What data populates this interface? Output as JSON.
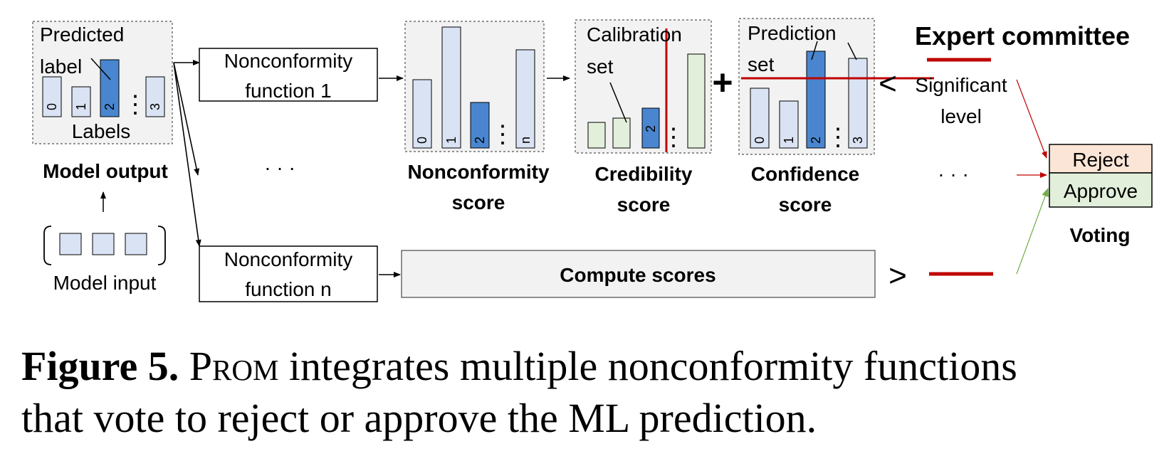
{
  "colors": {
    "panel_bg": "#f2f2f2",
    "bar_light": "#dae3f3",
    "bar_highlight": "#4a86cf",
    "bar_green": "#e2efda",
    "red_line": "#c00000",
    "reject_fill": "#fbe5d6",
    "approve_fill": "#e2efda",
    "green_arrow": "#70ad47"
  },
  "model_output": {
    "predicted": "Predicted",
    "label": "label",
    "bar_labels": [
      "0",
      "1",
      "2",
      "3"
    ],
    "dots": "⋮",
    "axis_label": "Labels",
    "title": "Model output"
  },
  "model_input": {
    "title": "Model input"
  },
  "functions": {
    "f1_line1": "Nonconformity",
    "f1_line2": "function 1",
    "fn_line1": "Nonconformity",
    "fn_line2": "function n",
    "ellipsis": "· · ·"
  },
  "nonconformity_score": {
    "bar_labels": [
      "0",
      "1",
      "2",
      "n"
    ],
    "title_line1": "Nonconformity",
    "title_line2": "score"
  },
  "credibility": {
    "set_line1": "Calibration",
    "set_line2": "set",
    "highlight_label": "2",
    "title_line1": "Credibility",
    "title_line2": "score"
  },
  "plus_sign": "+",
  "confidence": {
    "set_line1": "Prediction",
    "set_line2": "set",
    "bar_labels": [
      "0",
      "1",
      "2",
      "3"
    ],
    "title_line1": "Confidence",
    "title_line2": "score"
  },
  "expert": {
    "title": "Expert committee",
    "less_than": "<",
    "greater_than": ">",
    "sig_line1": "Significant",
    "sig_line2": "level",
    "ellipsis": "· · ·"
  },
  "compute": {
    "label": "Compute scores"
  },
  "voting": {
    "reject": "Reject",
    "approve": "Approve",
    "title": "Voting"
  },
  "caption": {
    "figure": "Figure 5.",
    "prom": "Prom",
    "rest_line1": "integrates multiple nonconformity functions",
    "line2": "that vote to reject or approve the ML prediction."
  }
}
